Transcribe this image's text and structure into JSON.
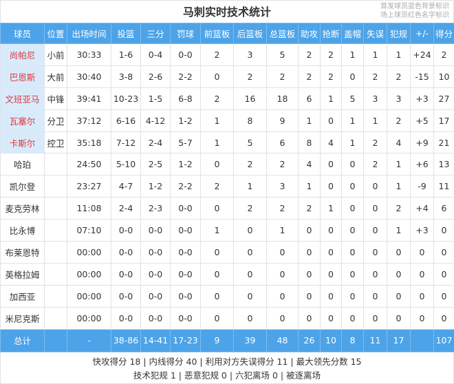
{
  "title": "马刺实时技术统计",
  "legend": [
    "首发球员蓝色背景标识",
    "场上球员红色名字标识"
  ],
  "colors": {
    "header_bg": "#4da3e8",
    "starter_bg": "#d9ebfb",
    "on_court_name": "#e0353b"
  },
  "columns": [
    "球员",
    "位置",
    "出场时间",
    "投篮",
    "三分",
    "罚球",
    "前篮板",
    "后篮板",
    "总篮板",
    "助攻",
    "抢断",
    "盖帽",
    "失误",
    "犯规",
    "+/-",
    "得分"
  ],
  "players": [
    {
      "starter": true,
      "cells": [
        "尚帕尼",
        "小前",
        "30:33",
        "1-6",
        "0-4",
        "0-0",
        "2",
        "3",
        "5",
        "2",
        "2",
        "1",
        "1",
        "1",
        "+24",
        "2"
      ]
    },
    {
      "starter": true,
      "cells": [
        "巴恩斯",
        "大前",
        "30:40",
        "3-8",
        "2-6",
        "2-2",
        "0",
        "2",
        "2",
        "2",
        "2",
        "0",
        "2",
        "2",
        "-15",
        "10"
      ]
    },
    {
      "starter": true,
      "cells": [
        "文班亚马",
        "中锋",
        "39:41",
        "10-23",
        "1-5",
        "6-8",
        "2",
        "16",
        "18",
        "6",
        "1",
        "5",
        "3",
        "3",
        "+3",
        "27"
      ]
    },
    {
      "starter": true,
      "cells": [
        "瓦塞尔",
        "分卫",
        "37:12",
        "6-16",
        "4-12",
        "1-2",
        "1",
        "8",
        "9",
        "1",
        "0",
        "1",
        "1",
        "2",
        "+5",
        "17"
      ]
    },
    {
      "starter": true,
      "cells": [
        "卡斯尔",
        "控卫",
        "35:18",
        "7-12",
        "2-4",
        "5-7",
        "1",
        "5",
        "6",
        "8",
        "4",
        "1",
        "2",
        "4",
        "+9",
        "21"
      ]
    },
    {
      "starter": false,
      "cells": [
        "哈珀",
        "",
        "24:50",
        "5-10",
        "2-5",
        "1-2",
        "0",
        "2",
        "2",
        "4",
        "0",
        "0",
        "2",
        "1",
        "+6",
        "13"
      ]
    },
    {
      "starter": false,
      "cells": [
        "凯尔登",
        "",
        "23:27",
        "4-7",
        "1-2",
        "2-2",
        "2",
        "1",
        "3",
        "1",
        "0",
        "0",
        "0",
        "1",
        "-9",
        "11"
      ]
    },
    {
      "starter": false,
      "cells": [
        "麦克劳林",
        "",
        "11:08",
        "2-4",
        "2-3",
        "0-0",
        "0",
        "2",
        "2",
        "2",
        "1",
        "0",
        "0",
        "2",
        "+4",
        "6"
      ]
    },
    {
      "starter": false,
      "cells": [
        "比永博",
        "",
        "07:10",
        "0-0",
        "0-0",
        "0-0",
        "1",
        "0",
        "1",
        "0",
        "0",
        "0",
        "0",
        "1",
        "+3",
        "0"
      ]
    },
    {
      "starter": false,
      "cells": [
        "布莱恩特",
        "",
        "00:00",
        "0-0",
        "0-0",
        "0-0",
        "0",
        "0",
        "0",
        "0",
        "0",
        "0",
        "0",
        "0",
        "0",
        "0"
      ]
    },
    {
      "starter": false,
      "cells": [
        "英格拉姆",
        "",
        "00:00",
        "0-0",
        "0-0",
        "0-0",
        "0",
        "0",
        "0",
        "0",
        "0",
        "0",
        "0",
        "0",
        "0",
        "0"
      ]
    },
    {
      "starter": false,
      "cells": [
        "加西亚",
        "",
        "00:00",
        "0-0",
        "0-0",
        "0-0",
        "0",
        "0",
        "0",
        "0",
        "0",
        "0",
        "0",
        "0",
        "0",
        "0"
      ]
    },
    {
      "starter": false,
      "cells": [
        "米尼克斯",
        "",
        "00:00",
        "0-0",
        "0-0",
        "0-0",
        "0",
        "0",
        "0",
        "0",
        "0",
        "0",
        "0",
        "0",
        "0",
        "0"
      ]
    }
  ],
  "total": [
    "总计",
    "",
    "-",
    "38-86",
    "14-41",
    "17-23",
    "9",
    "39",
    "48",
    "26",
    "10",
    "8",
    "11",
    "17",
    "",
    "107"
  ],
  "footer": {
    "line1": "快攻得分 18 | 内线得分 40 | 利用对方失误得分 11 | 最大领先分数 15",
    "line2": "技术犯规 1 | 恶意犯规 0 | 六犯离场 0 | 被逐离场"
  }
}
